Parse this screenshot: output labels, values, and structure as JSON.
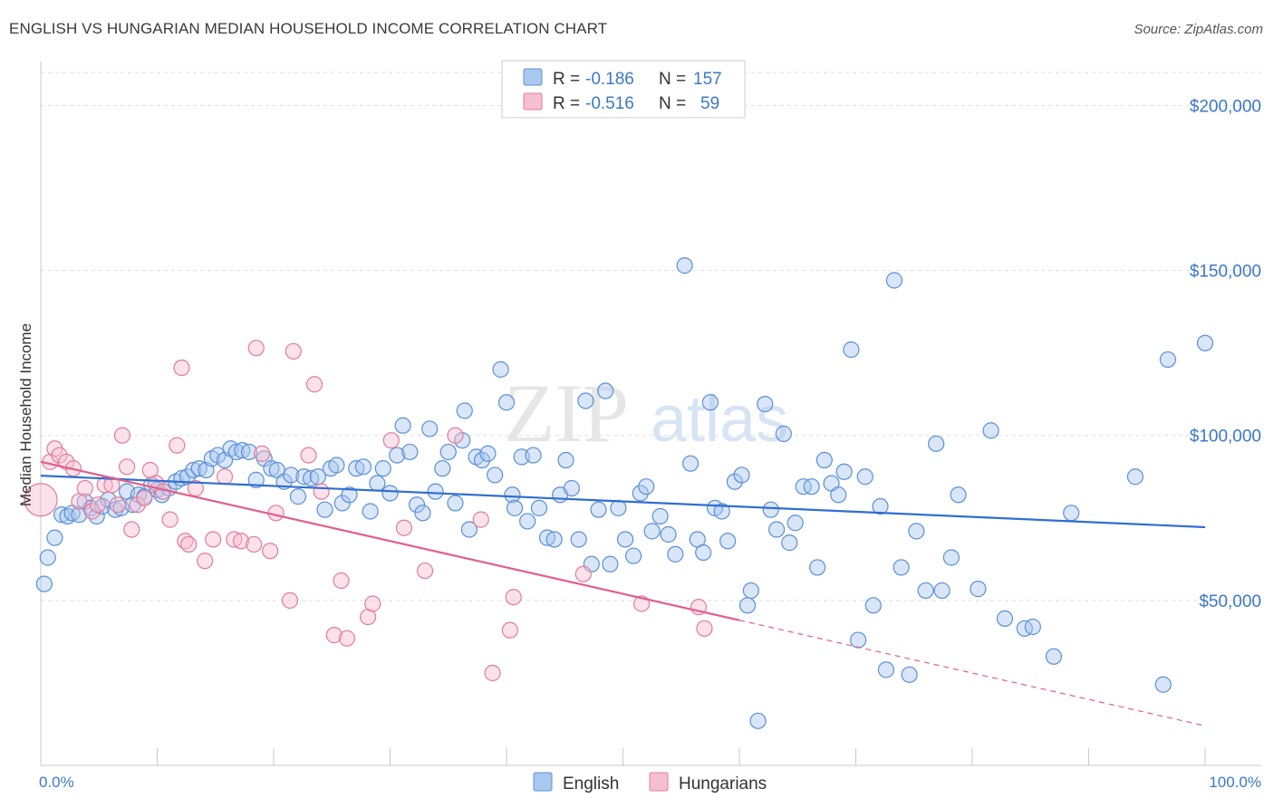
{
  "header": {
    "title": "ENGLISH VS HUNGARIAN MEDIAN HOUSEHOLD INCOME CORRELATION CHART",
    "source": "Source: ZipAtlas.com"
  },
  "legend": {
    "rows": [
      {
        "r_label": "R =",
        "r_value": "-0.186",
        "n_label": "N =",
        "n_value": "157",
        "color": "#a9c8ef",
        "stroke": "#5b8fd6"
      },
      {
        "r_label": "R =",
        "r_value": "-0.516",
        "n_label": "N =",
        "n_value": "59",
        "color": "#f6bfd0",
        "stroke": "#e27b9c"
      }
    ]
  },
  "watermark": {
    "zip": "ZIP",
    "atlas": "atlas"
  },
  "chart_data": {
    "type": "scatter",
    "title": "ENGLISH VS HUNGARIAN MEDIAN HOUSEHOLD INCOME CORRELATION CHART",
    "xlabel": "",
    "ylabel": "Median Household Income",
    "xlim": [
      0,
      100
    ],
    "ylim": [
      0,
      210000
    ],
    "x_tick_labels": [
      "0.0%",
      "100.0%"
    ],
    "y_ticks": [
      {
        "value": 50000,
        "label": "$50,000"
      },
      {
        "value": 100000,
        "label": "$100,000"
      },
      {
        "value": 150000,
        "label": "$150,000"
      },
      {
        "value": 200000,
        "label": "$200,000"
      }
    ],
    "grid": "horizontal dashed",
    "legend_position": "top-center",
    "bottom_legend": [
      "English",
      "Hungarians"
    ],
    "series": [
      {
        "name": "English",
        "color": "#a9c8ef",
        "stroke": "#5b8fd6",
        "trend": {
          "x0": 0,
          "y0": 87800,
          "x1": 100,
          "y1": 72200,
          "color": "#2f6fcf"
        },
        "points": [
          [
            0.3,
            55000
          ],
          [
            0.6,
            63000
          ],
          [
            1.2,
            69000
          ],
          [
            1.8,
            76000
          ],
          [
            2.3,
            75500
          ],
          [
            2.7,
            76500
          ],
          [
            3.3,
            76000
          ],
          [
            3.8,
            80000
          ],
          [
            4.3,
            78000
          ],
          [
            4.8,
            75500
          ],
          [
            5.3,
            78500
          ],
          [
            5.8,
            80500
          ],
          [
            6.4,
            77500
          ],
          [
            6.9,
            78000
          ],
          [
            7.4,
            83000
          ],
          [
            7.9,
            79000
          ],
          [
            8.4,
            82000
          ],
          [
            8.9,
            81500
          ],
          [
            9.5,
            85000
          ],
          [
            10,
            83500
          ],
          [
            10.4,
            82000
          ],
          [
            11,
            84000
          ],
          [
            11.6,
            86000
          ],
          [
            12.1,
            87000
          ],
          [
            12.6,
            87500
          ],
          [
            13.1,
            89500
          ],
          [
            13.6,
            90000
          ],
          [
            14.2,
            89500
          ],
          [
            14.7,
            93000
          ],
          [
            15.2,
            94000
          ],
          [
            15.8,
            92500
          ],
          [
            16.3,
            96000
          ],
          [
            16.8,
            95000
          ],
          [
            17.3,
            95500
          ],
          [
            17.9,
            95000
          ],
          [
            18.5,
            86500
          ],
          [
            19.2,
            93000
          ],
          [
            19.8,
            90000
          ],
          [
            20.3,
            89500
          ],
          [
            20.9,
            86000
          ],
          [
            21.5,
            88000
          ],
          [
            22.1,
            81500
          ],
          [
            22.6,
            87500
          ],
          [
            23.2,
            87000
          ],
          [
            23.8,
            87500
          ],
          [
            24.4,
            77500
          ],
          [
            24.9,
            90000
          ],
          [
            25.4,
            91000
          ],
          [
            25.9,
            79500
          ],
          [
            26.5,
            82000
          ],
          [
            27.1,
            90000
          ],
          [
            27.7,
            90500
          ],
          [
            28.3,
            77000
          ],
          [
            28.9,
            85500
          ],
          [
            29.4,
            90000
          ],
          [
            30,
            82500
          ],
          [
            30.6,
            94000
          ],
          [
            31.1,
            103000
          ],
          [
            31.7,
            95000
          ],
          [
            32.3,
            79000
          ],
          [
            32.8,
            76500
          ],
          [
            33.4,
            102000
          ],
          [
            33.9,
            83000
          ],
          [
            34.5,
            90000
          ],
          [
            35,
            95000
          ],
          [
            35.6,
            79500
          ],
          [
            36.2,
            98500
          ],
          [
            36.4,
            107500
          ],
          [
            36.8,
            71500
          ],
          [
            37.4,
            93500
          ],
          [
            37.9,
            92500
          ],
          [
            38.4,
            94500
          ],
          [
            39,
            88000
          ],
          [
            39.5,
            120000
          ],
          [
            40,
            110000
          ],
          [
            40.5,
            82000
          ],
          [
            40.7,
            78000
          ],
          [
            41.3,
            93500
          ],
          [
            41.8,
            74000
          ],
          [
            42.3,
            94000
          ],
          [
            42.8,
            78000
          ],
          [
            43.5,
            69000
          ],
          [
            44.1,
            68500
          ],
          [
            44.6,
            82000
          ],
          [
            45.1,
            92500
          ],
          [
            45.6,
            84000
          ],
          [
            46.2,
            68500
          ],
          [
            46.8,
            110500
          ],
          [
            47.3,
            61000
          ],
          [
            47.9,
            77500
          ],
          [
            48.5,
            113500
          ],
          [
            48.9,
            61000
          ],
          [
            49.6,
            78000
          ],
          [
            50.2,
            68500
          ],
          [
            50.9,
            63500
          ],
          [
            51.5,
            82500
          ],
          [
            52,
            84500
          ],
          [
            52.5,
            71000
          ],
          [
            53.2,
            75500
          ],
          [
            53.9,
            70000
          ],
          [
            54.5,
            64000
          ],
          [
            55.3,
            151500
          ],
          [
            55.8,
            91500
          ],
          [
            56.4,
            68500
          ],
          [
            56.9,
            64500
          ],
          [
            57.5,
            110000
          ],
          [
            57.9,
            78000
          ],
          [
            58.5,
            77000
          ],
          [
            59,
            68000
          ],
          [
            59.6,
            86000
          ],
          [
            60.2,
            88000
          ],
          [
            60.7,
            48500
          ],
          [
            61,
            53000
          ],
          [
            61.6,
            13500
          ],
          [
            62.2,
            109500
          ],
          [
            62.7,
            77500
          ],
          [
            63.2,
            71500
          ],
          [
            63.8,
            100500
          ],
          [
            64.3,
            67500
          ],
          [
            64.8,
            73500
          ],
          [
            65.5,
            84500
          ],
          [
            66.2,
            84500
          ],
          [
            66.7,
            60000
          ],
          [
            67.3,
            92500
          ],
          [
            67.9,
            85500
          ],
          [
            68.5,
            82000
          ],
          [
            69,
            89000
          ],
          [
            69.6,
            126000
          ],
          [
            70.2,
            38000
          ],
          [
            70.8,
            87500
          ],
          [
            71.5,
            48500
          ],
          [
            72.1,
            78500
          ],
          [
            72.6,
            29000
          ],
          [
            73.3,
            147000
          ],
          [
            73.9,
            60000
          ],
          [
            74.6,
            27500
          ],
          [
            75.2,
            71000
          ],
          [
            76,
            53000
          ],
          [
            76.9,
            97500
          ],
          [
            77.4,
            53000
          ],
          [
            78.2,
            63000
          ],
          [
            78.8,
            82000
          ],
          [
            80.5,
            53500
          ],
          [
            81.6,
            101500
          ],
          [
            82.8,
            44500
          ],
          [
            84.5,
            41500
          ],
          [
            85.2,
            42000
          ],
          [
            87,
            33000
          ],
          [
            88.5,
            76500
          ],
          [
            94,
            87500
          ],
          [
            96.4,
            24500
          ],
          [
            96.8,
            123000
          ],
          [
            100,
            128000
          ]
        ]
      },
      {
        "name": "Hungarians",
        "color": "#f6bfd0",
        "stroke": "#e27b9c",
        "trend": {
          "x0": 0,
          "y0": 92000,
          "x1": 60,
          "y1": 44000,
          "x_ext": 100,
          "y_ext": 12000,
          "color": "#e35d8a"
        },
        "points": [
          [
            0,
            80500
          ],
          [
            0.8,
            92000
          ],
          [
            1.2,
            96000
          ],
          [
            1.6,
            94000
          ],
          [
            2.2,
            92000
          ],
          [
            2.8,
            90000
          ],
          [
            3.3,
            80000
          ],
          [
            3.8,
            84000
          ],
          [
            4.4,
            77000
          ],
          [
            4.9,
            79000
          ],
          [
            5.5,
            85000
          ],
          [
            6.1,
            85000
          ],
          [
            6.6,
            79000
          ],
          [
            7,
            100000
          ],
          [
            7.4,
            90500
          ],
          [
            7.8,
            71500
          ],
          [
            8.3,
            79000
          ],
          [
            8.9,
            81000
          ],
          [
            9.4,
            89500
          ],
          [
            9.9,
            85500
          ],
          [
            10.5,
            83000
          ],
          [
            11.1,
            74500
          ],
          [
            11.7,
            97000
          ],
          [
            12.1,
            120500
          ],
          [
            12.4,
            68000
          ],
          [
            12.7,
            67000
          ],
          [
            13.3,
            84000
          ],
          [
            14.1,
            62000
          ],
          [
            14.8,
            68500
          ],
          [
            15.8,
            87500
          ],
          [
            16.6,
            68500
          ],
          [
            17.2,
            68000
          ],
          [
            18.3,
            67000
          ],
          [
            18.5,
            126500
          ],
          [
            19,
            94500
          ],
          [
            19.7,
            65000
          ],
          [
            20.2,
            76500
          ],
          [
            21.4,
            50000
          ],
          [
            21.7,
            125500
          ],
          [
            23,
            94000
          ],
          [
            23.5,
            115500
          ],
          [
            24.1,
            83000
          ],
          [
            25.2,
            39500
          ],
          [
            25.8,
            56000
          ],
          [
            26.3,
            38500
          ],
          [
            28.1,
            45000
          ],
          [
            28.5,
            49000
          ],
          [
            30.1,
            98500
          ],
          [
            31.2,
            72000
          ],
          [
            33,
            59000
          ],
          [
            35.6,
            100000
          ],
          [
            37.8,
            74500
          ],
          [
            38.8,
            28000
          ],
          [
            40.3,
            41000
          ],
          [
            40.6,
            51000
          ],
          [
            46.6,
            58000
          ],
          [
            51.6,
            49000
          ],
          [
            56.5,
            48000
          ],
          [
            57,
            41500
          ]
        ]
      }
    ]
  }
}
